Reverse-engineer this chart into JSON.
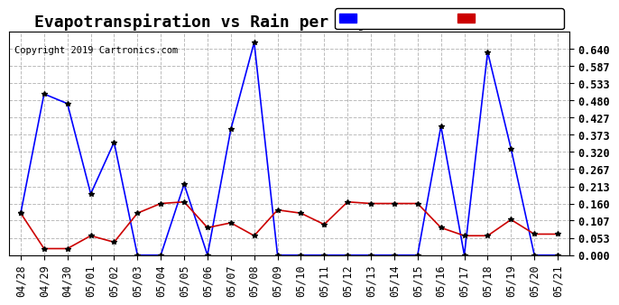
{
  "title": "Evapotranspiration vs Rain per Day (Inches) 20190522",
  "copyright": "Copyright 2019 Cartronics.com",
  "labels": [
    "04/28",
    "04/29",
    "04/30",
    "05/01",
    "05/02",
    "05/03",
    "05/04",
    "05/05",
    "05/06",
    "05/07",
    "05/08",
    "05/09",
    "05/10",
    "05/11",
    "05/12",
    "05/13",
    "05/14",
    "05/15",
    "05/16",
    "05/17",
    "05/18",
    "05/19",
    "05/20",
    "05/21"
  ],
  "rain": [
    0.13,
    0.5,
    0.47,
    0.19,
    0.35,
    0.0,
    0.0,
    0.22,
    0.0,
    0.39,
    0.66,
    0.0,
    0.0,
    0.0,
    0.0,
    0.0,
    0.0,
    0.0,
    0.4,
    0.0,
    0.63,
    0.33,
    0.0,
    0.0
  ],
  "et": [
    0.13,
    0.02,
    0.02,
    0.06,
    0.04,
    0.13,
    0.16,
    0.165,
    0.085,
    0.1,
    0.06,
    0.14,
    0.13,
    0.095,
    0.165,
    0.16,
    0.16,
    0.16,
    0.085,
    0.06,
    0.06,
    0.11,
    0.065,
    0.065
  ],
  "ylim": [
    0,
    0.693
  ],
  "yticks": [
    0.0,
    0.053,
    0.107,
    0.16,
    0.213,
    0.267,
    0.32,
    0.373,
    0.427,
    0.48,
    0.533,
    0.587,
    0.64
  ],
  "rain_color": "#0000ff",
  "et_color": "#cc0000",
  "legend_rain_bg": "#0000ff",
  "legend_et_bg": "#cc0000",
  "background_color": "#ffffff",
  "grid_color": "#aaaaaa",
  "title_fontsize": 13,
  "tick_fontsize": 8.5,
  "legend_fontsize": 9
}
